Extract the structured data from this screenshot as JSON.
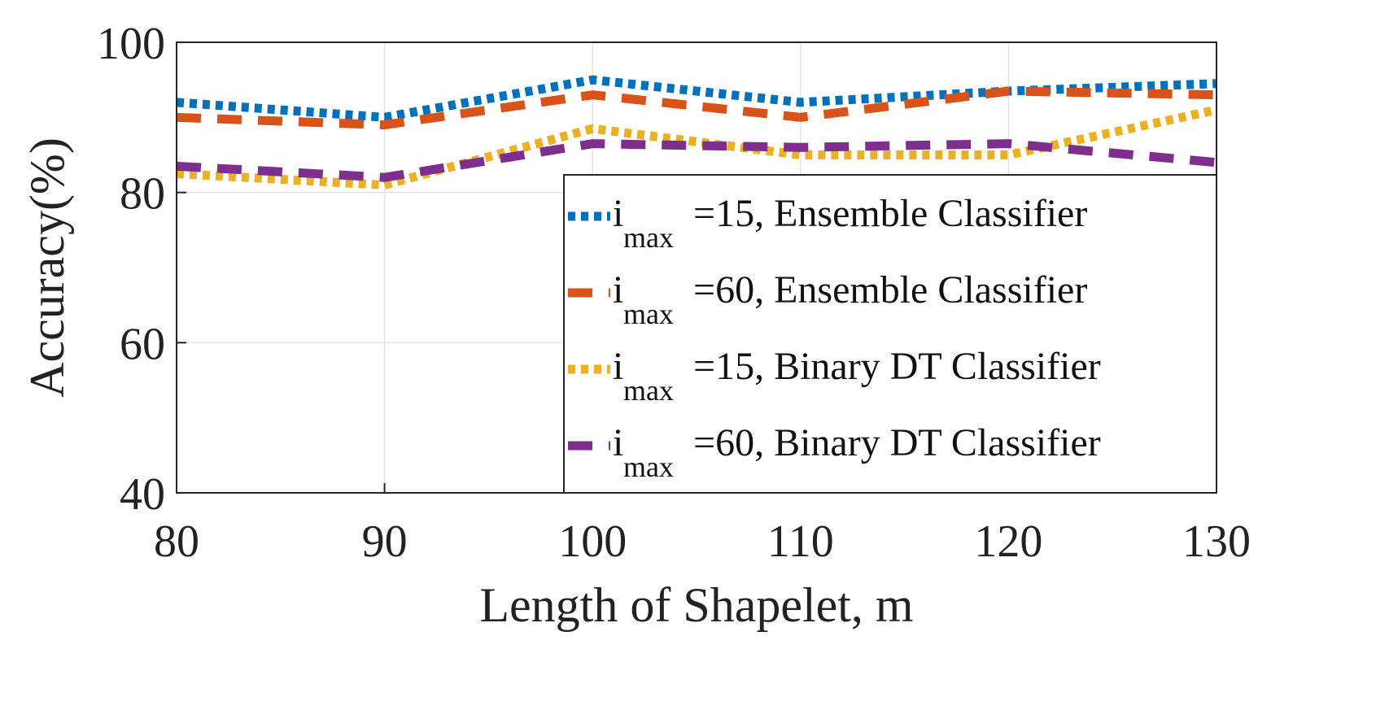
{
  "chart_data": {
    "type": "line",
    "title": "",
    "xlabel": "Length of Shapelet, m",
    "ylabel": "Accuracy(%)",
    "x": [
      80,
      90,
      100,
      110,
      120,
      130
    ],
    "xlim": [
      80,
      130
    ],
    "ylim": [
      40,
      100
    ],
    "xticks": [
      "80",
      "90",
      "100",
      "110",
      "120",
      "130"
    ],
    "yticks": [
      "40",
      "60",
      "80",
      "100"
    ],
    "grid": true,
    "legend_position": "bottom-right",
    "series": [
      {
        "name": "i_max=15, Ensemble Classifier",
        "legend_main": "i",
        "legend_sub": "max",
        "legend_rest": "=15, Ensemble Classifier",
        "style": "dotted",
        "color": "#0072BD",
        "values": [
          92,
          90,
          95,
          92,
          93.5,
          94.5
        ]
      },
      {
        "name": "i_max=60, Ensemble Classifier",
        "legend_main": "i",
        "legend_sub": "max",
        "legend_rest": "=60, Ensemble Classifier",
        "style": "dashed",
        "color": "#D95319",
        "values": [
          90,
          89,
          93,
          90,
          93.5,
          93
        ]
      },
      {
        "name": "i_max=15, Binary DT Classifier",
        "legend_main": "i",
        "legend_sub": "max",
        "legend_rest": "=15, Binary DT Classifier",
        "style": "dotted",
        "color": "#EDB120",
        "values": [
          82.5,
          81,
          88.5,
          85,
          85,
          91
        ]
      },
      {
        "name": "i_max=60, Binary DT Classifier",
        "legend_main": "i",
        "legend_sub": "max",
        "legend_rest": "=60, Binary DT Classifier",
        "style": "dashed",
        "color": "#7E2F8E",
        "values": [
          83.5,
          82,
          86.5,
          86,
          86.5,
          84
        ]
      }
    ]
  }
}
